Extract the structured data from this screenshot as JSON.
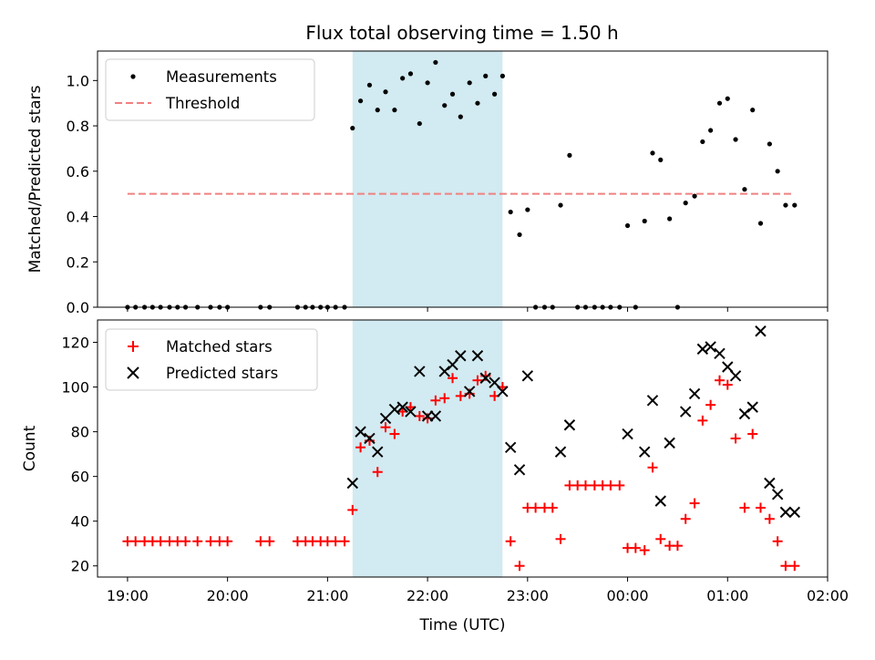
{
  "chart_data": [
    {
      "panel": "top",
      "type": "scatter",
      "title": "Flux total observing time = 1.50 h",
      "ylabel": "Matched/Predicted stars",
      "xlabel": "",
      "x_ticks": [
        "19:00",
        "20:00",
        "21:00",
        "22:00",
        "23:00",
        "00:00",
        "01:00",
        "02:00"
      ],
      "y_ticks": [
        "0.0",
        "0.2",
        "0.4",
        "0.6",
        "0.8",
        "1.0"
      ],
      "xlim_hours_since_1900": [
        -0.3,
        7.0
      ],
      "ylim": [
        0,
        1.13
      ],
      "highlight_span_hours_since_1900": [
        2.25,
        3.75
      ],
      "highlight_color": "#add8e6",
      "legend": {
        "placement": "upper-left",
        "entries": [
          "Measurements",
          "Threshold"
        ]
      },
      "series": [
        {
          "name": "Measurements",
          "marker": "dot",
          "color": "#000000",
          "points": [
            [
              0.0,
              0
            ],
            [
              0.08,
              0
            ],
            [
              0.17,
              0
            ],
            [
              0.25,
              0
            ],
            [
              0.33,
              0
            ],
            [
              0.42,
              0
            ],
            [
              0.5,
              0
            ],
            [
              0.58,
              0
            ],
            [
              0.7,
              0
            ],
            [
              0.83,
              0
            ],
            [
              0.92,
              0
            ],
            [
              1.0,
              0
            ],
            [
              1.33,
              0
            ],
            [
              1.42,
              0
            ],
            [
              1.7,
              0
            ],
            [
              1.78,
              0
            ],
            [
              1.85,
              0
            ],
            [
              1.93,
              0
            ],
            [
              2.0,
              0
            ],
            [
              2.08,
              0
            ],
            [
              2.17,
              0
            ],
            [
              2.25,
              0.79
            ],
            [
              2.33,
              0.91
            ],
            [
              2.42,
              0.98
            ],
            [
              2.5,
              0.87
            ],
            [
              2.58,
              0.95
            ],
            [
              2.67,
              0.87
            ],
            [
              2.75,
              1.01
            ],
            [
              2.83,
              1.03
            ],
            [
              2.92,
              0.81
            ],
            [
              3.0,
              0.99
            ],
            [
              3.08,
              1.08
            ],
            [
              3.17,
              0.89
            ],
            [
              3.25,
              0.94
            ],
            [
              3.33,
              0.84
            ],
            [
              3.42,
              0.99
            ],
            [
              3.5,
              0.9
            ],
            [
              3.58,
              1.02
            ],
            [
              3.67,
              0.94
            ],
            [
              3.75,
              1.02
            ],
            [
              3.83,
              0.42
            ],
            [
              3.92,
              0.32
            ],
            [
              4.0,
              0.43
            ],
            [
              4.08,
              0
            ],
            [
              4.17,
              0
            ],
            [
              4.25,
              0
            ],
            [
              4.33,
              0.45
            ],
            [
              4.42,
              0.67
            ],
            [
              4.5,
              0
            ],
            [
              4.58,
              0
            ],
            [
              4.67,
              0
            ],
            [
              4.75,
              0
            ],
            [
              4.83,
              0
            ],
            [
              4.92,
              0
            ],
            [
              5.0,
              0.36
            ],
            [
              5.08,
              0
            ],
            [
              5.17,
              0.38
            ],
            [
              5.25,
              0.68
            ],
            [
              5.33,
              0.65
            ],
            [
              5.42,
              0.39
            ],
            [
              5.5,
              0
            ],
            [
              5.58,
              0.46
            ],
            [
              5.67,
              0.49
            ],
            [
              5.75,
              0.73
            ],
            [
              5.83,
              0.78
            ],
            [
              5.92,
              0.9
            ],
            [
              6.0,
              0.92
            ],
            [
              6.08,
              0.74
            ],
            [
              6.17,
              0.52
            ],
            [
              6.25,
              0.87
            ],
            [
              6.33,
              0.37
            ],
            [
              6.42,
              0.72
            ],
            [
              6.5,
              0.6
            ],
            [
              6.58,
              0.45
            ],
            [
              6.67,
              0.45
            ]
          ]
        },
        {
          "name": "Threshold",
          "style": "dashed",
          "color": "#f08080",
          "x": [
            0.0,
            6.67
          ],
          "y": [
            0.5,
            0.5
          ]
        }
      ]
    },
    {
      "panel": "bottom",
      "type": "scatter",
      "title": "",
      "ylabel": "Count",
      "xlabel": "Time (UTC)",
      "x_ticks": [
        "19:00",
        "20:00",
        "21:00",
        "22:00",
        "23:00",
        "00:00",
        "01:00",
        "02:00"
      ],
      "y_ticks": [
        "20",
        "40",
        "60",
        "80",
        "100",
        "120"
      ],
      "xlim_hours_since_1900": [
        -0.3,
        7.0
      ],
      "ylim": [
        15,
        130
      ],
      "highlight_span_hours_since_1900": [
        2.25,
        3.75
      ],
      "highlight_color": "#add8e6",
      "legend": {
        "placement": "upper-left",
        "entries": [
          "Matched stars",
          "Predicted stars"
        ]
      },
      "series": [
        {
          "name": "Matched stars",
          "marker": "plus",
          "color": "#ff0000",
          "points": [
            [
              0.0,
              31
            ],
            [
              0.08,
              31
            ],
            [
              0.17,
              31
            ],
            [
              0.25,
              31
            ],
            [
              0.33,
              31
            ],
            [
              0.42,
              31
            ],
            [
              0.5,
              31
            ],
            [
              0.58,
              31
            ],
            [
              0.7,
              31
            ],
            [
              0.83,
              31
            ],
            [
              0.92,
              31
            ],
            [
              1.0,
              31
            ],
            [
              1.33,
              31
            ],
            [
              1.42,
              31
            ],
            [
              1.7,
              31
            ],
            [
              1.78,
              31
            ],
            [
              1.85,
              31
            ],
            [
              1.93,
              31
            ],
            [
              2.0,
              31
            ],
            [
              2.08,
              31
            ],
            [
              2.17,
              31
            ],
            [
              2.25,
              45
            ],
            [
              2.33,
              73
            ],
            [
              2.42,
              76
            ],
            [
              2.5,
              62
            ],
            [
              2.58,
              82
            ],
            [
              2.67,
              79
            ],
            [
              2.75,
              89
            ],
            [
              2.83,
              91
            ],
            [
              2.92,
              87
            ],
            [
              3.0,
              86
            ],
            [
              3.08,
              94
            ],
            [
              3.17,
              95
            ],
            [
              3.25,
              104
            ],
            [
              3.33,
              96
            ],
            [
              3.42,
              97
            ],
            [
              3.5,
              103
            ],
            [
              3.58,
              105
            ],
            [
              3.67,
              96
            ],
            [
              3.75,
              100
            ],
            [
              3.83,
              31
            ],
            [
              3.92,
              20
            ],
            [
              4.0,
              46
            ],
            [
              4.08,
              46
            ],
            [
              4.17,
              46
            ],
            [
              4.25,
              46
            ],
            [
              4.33,
              32
            ],
            [
              4.42,
              56
            ],
            [
              4.5,
              56
            ],
            [
              4.58,
              56
            ],
            [
              4.67,
              56
            ],
            [
              4.75,
              56
            ],
            [
              4.83,
              56
            ],
            [
              4.92,
              56
            ],
            [
              5.0,
              28
            ],
            [
              5.08,
              28
            ],
            [
              5.17,
              27
            ],
            [
              5.25,
              64
            ],
            [
              5.33,
              32
            ],
            [
              5.42,
              29
            ],
            [
              5.5,
              29
            ],
            [
              5.58,
              41
            ],
            [
              5.67,
              48
            ],
            [
              5.75,
              85
            ],
            [
              5.83,
              92
            ],
            [
              5.92,
              103
            ],
            [
              6.0,
              101
            ],
            [
              6.08,
              77
            ],
            [
              6.17,
              46
            ],
            [
              6.25,
              79
            ],
            [
              6.33,
              46
            ],
            [
              6.42,
              41
            ],
            [
              6.5,
              31
            ],
            [
              6.58,
              20
            ],
            [
              6.67,
              20
            ]
          ]
        },
        {
          "name": "Predicted stars",
          "marker": "x",
          "color": "#000000",
          "points": [
            [
              2.25,
              57
            ],
            [
              2.33,
              80
            ],
            [
              2.42,
              77
            ],
            [
              2.5,
              71
            ],
            [
              2.58,
              86
            ],
            [
              2.67,
              90
            ],
            [
              2.75,
              91
            ],
            [
              2.83,
              89
            ],
            [
              2.92,
              107
            ],
            [
              3.0,
              87
            ],
            [
              3.08,
              87
            ],
            [
              3.17,
              107
            ],
            [
              3.25,
              110
            ],
            [
              3.33,
              114
            ],
            [
              3.42,
              98
            ],
            [
              3.5,
              114
            ],
            [
              3.58,
              104
            ],
            [
              3.67,
              102
            ],
            [
              3.75,
              98
            ],
            [
              3.83,
              73
            ],
            [
              3.92,
              63
            ],
            [
              4.0,
              105
            ],
            [
              4.33,
              71
            ],
            [
              4.42,
              83
            ],
            [
              5.0,
              79
            ],
            [
              5.17,
              71
            ],
            [
              5.25,
              94
            ],
            [
              5.33,
              49
            ],
            [
              5.42,
              75
            ],
            [
              5.58,
              89
            ],
            [
              5.67,
              97
            ],
            [
              5.75,
              117
            ],
            [
              5.83,
              118
            ],
            [
              5.92,
              115
            ],
            [
              6.0,
              109
            ],
            [
              6.08,
              105
            ],
            [
              6.17,
              88
            ],
            [
              6.25,
              91
            ],
            [
              6.33,
              125
            ],
            [
              6.42,
              57
            ],
            [
              6.5,
              52
            ],
            [
              6.58,
              44
            ],
            [
              6.67,
              44
            ]
          ]
        }
      ]
    }
  ]
}
